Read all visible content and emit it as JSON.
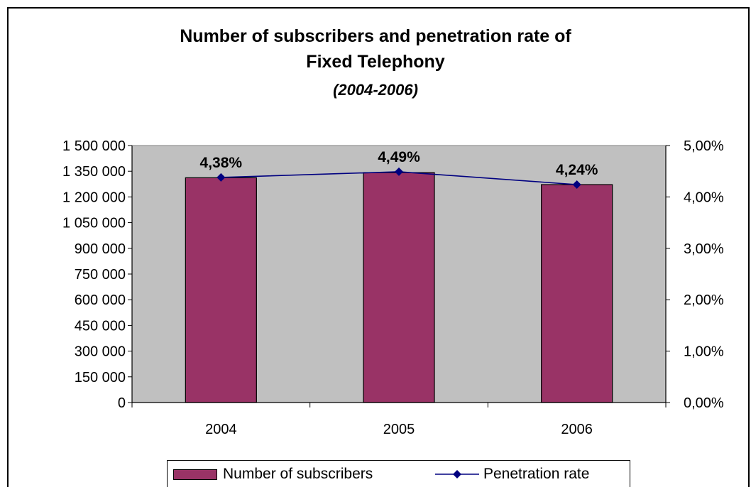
{
  "chart_data": {
    "type": "bar",
    "title_line1": "Number of subscribers and penetration rate of",
    "title_line2": "Fixed Telephony",
    "subtitle": "(2004-2006)",
    "categories": [
      "2004",
      "2005",
      "2006"
    ],
    "series": [
      {
        "name": "Number of subscribers",
        "type": "bar",
        "axis": "left",
        "color": "#993366",
        "values": [
          1312000,
          1342000,
          1272000
        ]
      },
      {
        "name": "Penetration rate",
        "type": "line",
        "axis": "right",
        "color": "#000080",
        "values": [
          4.38,
          4.49,
          4.24
        ],
        "data_labels": [
          "4,38%",
          "4,49%",
          "4,24%"
        ]
      }
    ],
    "y_left": {
      "min": 0,
      "max": 1500000,
      "ticks": [
        0,
        150000,
        300000,
        450000,
        600000,
        750000,
        900000,
        1050000,
        1200000,
        1350000,
        1500000
      ],
      "tick_labels": [
        "0",
        "150 000",
        "300 000",
        "450 000",
        "600 000",
        "750 000",
        "900 000",
        "1 050 000",
        "1 200 000",
        "1 350 000",
        "1 500 000"
      ]
    },
    "y_right": {
      "min": 0,
      "max": 5,
      "ticks": [
        0,
        1,
        2,
        3,
        4,
        5
      ],
      "tick_labels": [
        "0,00%",
        "1,00%",
        "2,00%",
        "3,00%",
        "4,00%",
        "5,00%"
      ]
    },
    "plot_background": "#c0c0c0",
    "grid": false,
    "legend_position": "bottom"
  }
}
